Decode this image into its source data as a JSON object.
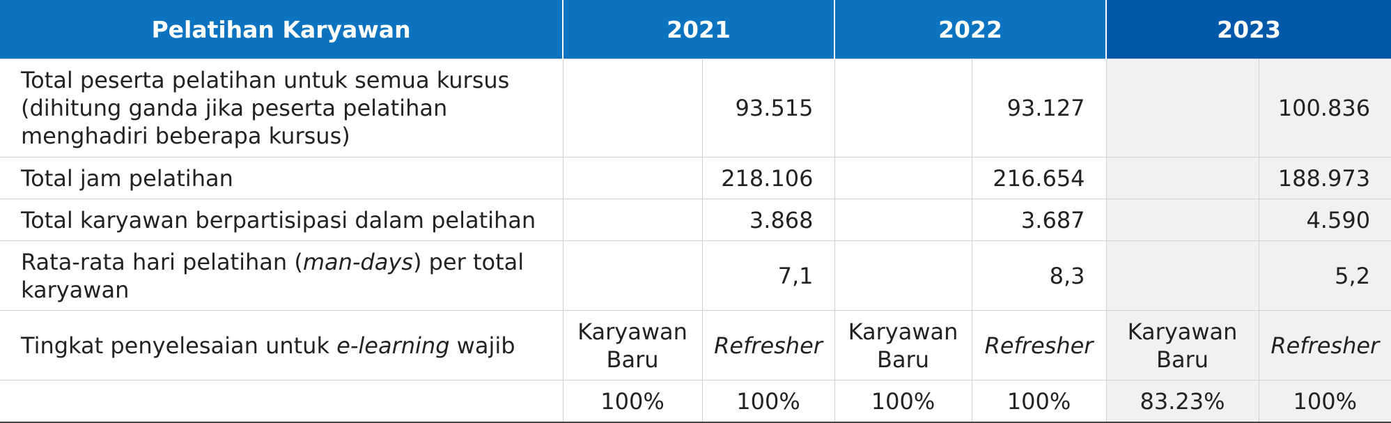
{
  "header": {
    "title": "Pelatihan Karyawan",
    "years": [
      "2021",
      "2022",
      "2023"
    ]
  },
  "rows": {
    "participants": {
      "label": "Total peserta pelatihan untuk semua kursus (dihitung ganda jika peserta pelatihan menghadiri beberapa kursus)",
      "values": [
        "93.515",
        "93.127",
        "100.836"
      ]
    },
    "hours": {
      "label": "Total jam pelatihan",
      "values": [
        "218.106",
        "216.654",
        "188.973"
      ]
    },
    "employees": {
      "label": "Total karyawan berpartisipasi dalam pelatihan",
      "values": [
        "3.868",
        "3.687",
        "4.590"
      ]
    },
    "mandays": {
      "label_before": "Rata-rata hari pelatihan (",
      "label_em": "man-days",
      "label_after": ") per total karyawan",
      "values": [
        "7,1",
        "8,3",
        "5,2"
      ]
    },
    "completion": {
      "label_before": "Tingkat penyelesaian untuk ",
      "label_em": "e-learning",
      "label_after": " wajib",
      "new_label": "Karyawan Baru",
      "refresher_label": "Refresher",
      "values": [
        "100%",
        "100%",
        "100%",
        "100%",
        "83.23%",
        "100%"
      ]
    }
  },
  "colors": {
    "header": "#0b73bf",
    "header_highlight": "#0058a8",
    "shade": "#f1f1f1"
  }
}
